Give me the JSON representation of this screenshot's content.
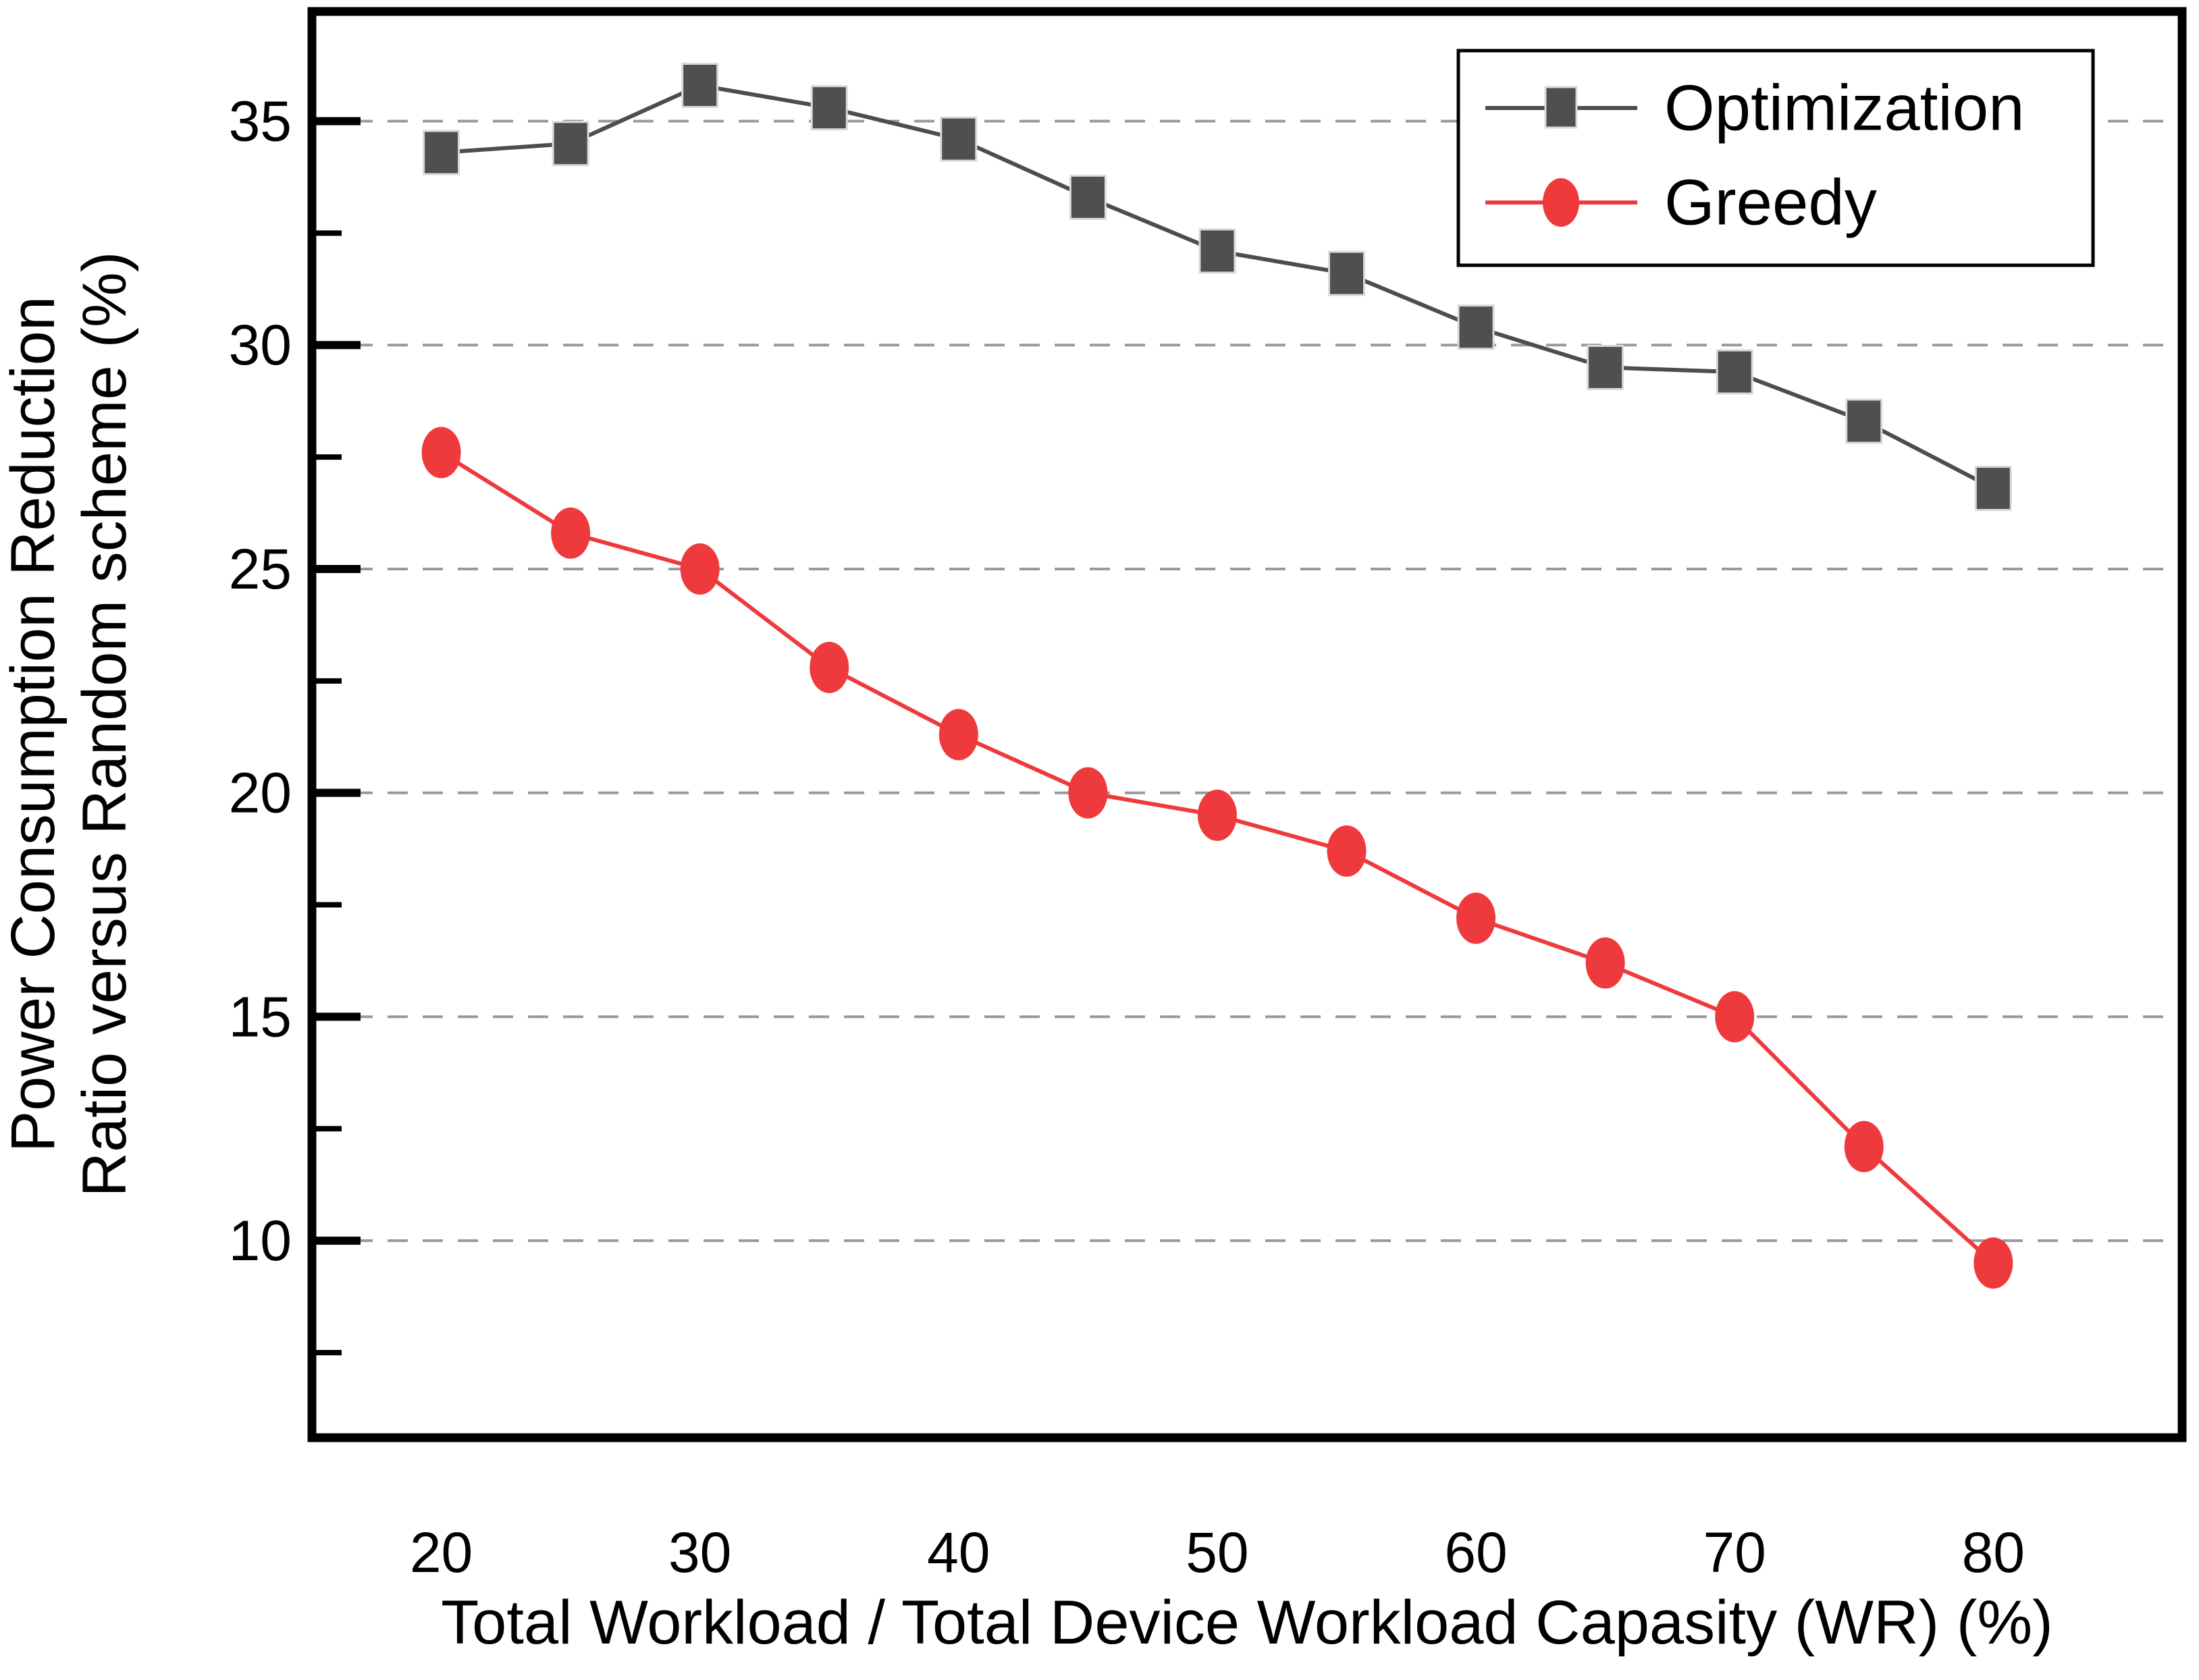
{
  "chart_data": {
    "type": "line",
    "title": "",
    "xlabel": "Total Workload / Total Device Workload Capasity (WR) (%)",
    "ylabel_line1": "Power Consumption Reduction",
    "ylabel_line2": "Ratio versus Random scheme (%)",
    "x": [
      20,
      25,
      30,
      35,
      40,
      45,
      50,
      55,
      60,
      65,
      70,
      75,
      80
    ],
    "series": [
      {
        "name": "Optimization",
        "marker": "square",
        "line_color": "#4d4d4d",
        "marker_fill": "#4f4f4f",
        "marker_edge": "#d9d9d9",
        "values": [
          34.3,
          34.5,
          35.8,
          35.3,
          34.6,
          33.3,
          32.1,
          31.6,
          30.4,
          29.5,
          29.4,
          28.3,
          26.8
        ]
      },
      {
        "name": "Greedy",
        "marker": "circle",
        "line_color": "#ef3a3d",
        "marker_fill": "#ef3a3d",
        "marker_edge": "#ef3a3d",
        "values": [
          27.6,
          25.8,
          25.0,
          22.8,
          21.3,
          20.0,
          19.5,
          18.7,
          17.2,
          16.2,
          15.0,
          12.1,
          9.5
        ]
      }
    ],
    "x_ticks": [
      20,
      30,
      40,
      50,
      60,
      70,
      80
    ],
    "y_ticks": [
      10,
      15,
      20,
      25,
      30,
      35
    ],
    "y_minor_ticks": [
      7.5,
      12.5,
      17.5,
      22.5,
      27.5,
      32.5,
      37.5
    ],
    "xlim": [
      15,
      87.3
    ],
    "ylim": [
      5.6,
      37.45
    ],
    "grid": "horizontal-dashed",
    "gridline_color": "#999999",
    "axis_color": "#000000",
    "legend_position": "top-right"
  }
}
